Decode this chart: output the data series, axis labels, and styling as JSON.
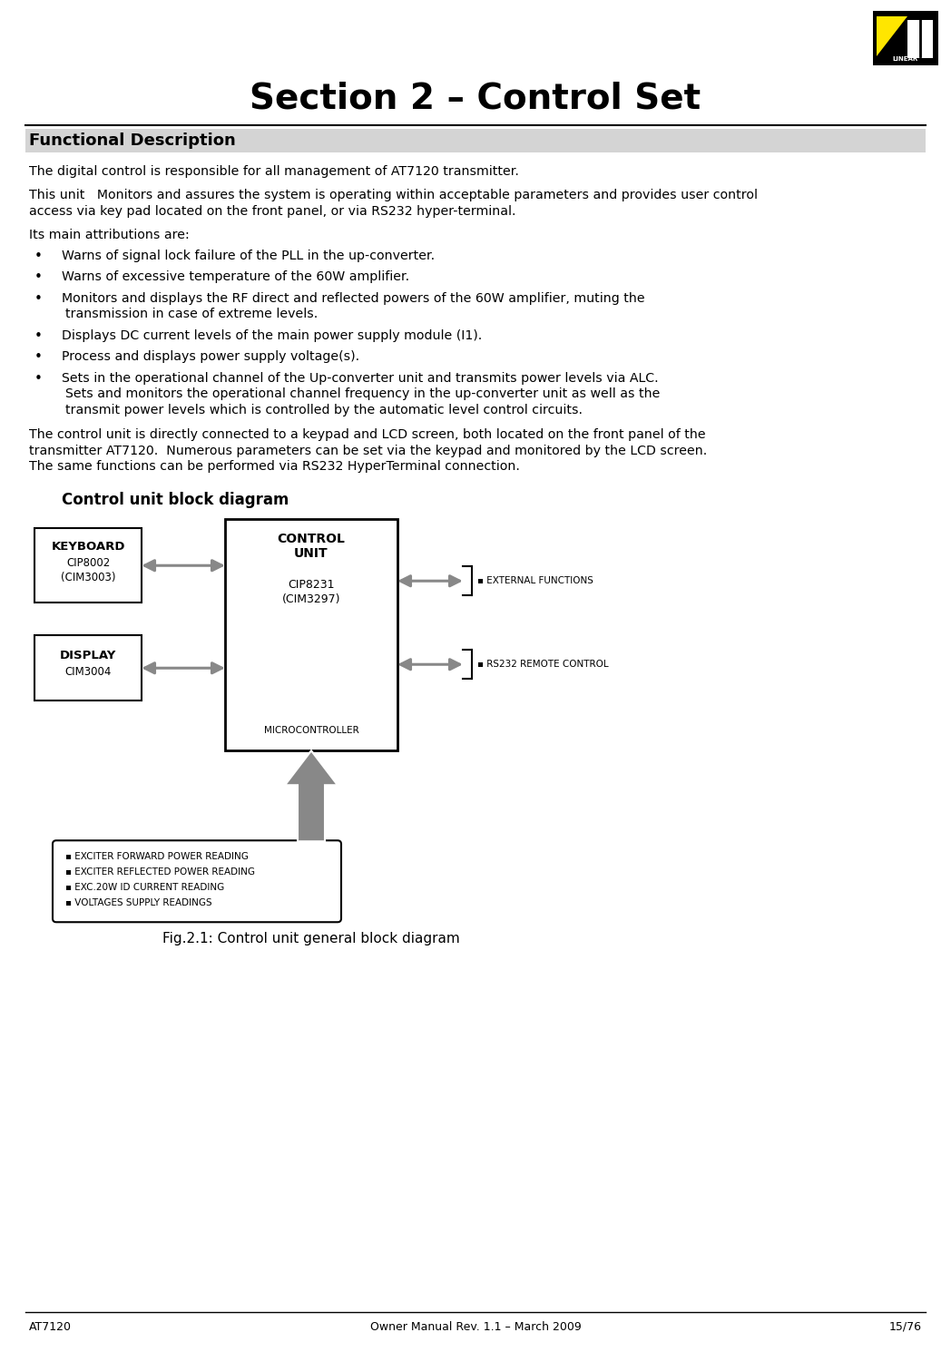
{
  "title": "Section 2 – Control Set",
  "section_heading": "Functional Description",
  "section_bg": "#d4d4d4",
  "para1": "The digital control is responsible for all management of AT7120 transmitter.",
  "para2a": "This unit   Monitors and assures the system is operating within acceptable parameters and provides user control",
  "para2b": "access via key pad located on the front panel, or via RS232 hyper-terminal.",
  "para3": "Its main attributions are:",
  "bullets": [
    [
      "Warns of signal lock failure of the PLL in the up-converter."
    ],
    [
      "Warns of excessive temperature of the 60W amplifier."
    ],
    [
      "Monitors and displays the RF direct and reflected powers of the 60W amplifier, muting the",
      "transmission in case of extreme levels."
    ],
    [
      "Displays DC current levels of the main power supply module (I1)."
    ],
    [
      "Process and displays power supply voltage(s)."
    ],
    [
      "Sets in the operational channel of the Up-converter unit and transmits power levels via ALC.",
      "Sets and monitors the operational channel frequency in the up-converter unit as well as the",
      "transmit power levels which is controlled by the automatic level control circuits."
    ]
  ],
  "para4a": "The control unit is directly connected to a keypad and LCD screen, both located on the front panel of the",
  "para4b": "transmitter AT7120.  Numerous parameters can be set via the keypad and monitored by the LCD screen.",
  "para4c": "The same functions can be performed via RS232 HyperTerminal connection.",
  "diagram_title": "Control unit block diagram",
  "fig_caption": "Fig.2.1: Control unit general block diagram",
  "footer_left": "AT7120",
  "footer_center": "Owner Manual Rev. 1.1 – March 2009",
  "footer_right": "15/76",
  "arrow_color": "#888888",
  "background": "#ffffff",
  "bottom_labels": [
    "▪ EXCITER FORWARD POWER READING",
    "▪ EXCITER REFLECTED POWER READING",
    "▪ EXC.20W ID CURRENT READING",
    "▪ VOLTAGES SUPPLY READINGS"
  ],
  "right_labels": [
    "▪ EXTERNAL FUNCTIONS",
    "▪ RS232 REMOTE CONTROL"
  ]
}
